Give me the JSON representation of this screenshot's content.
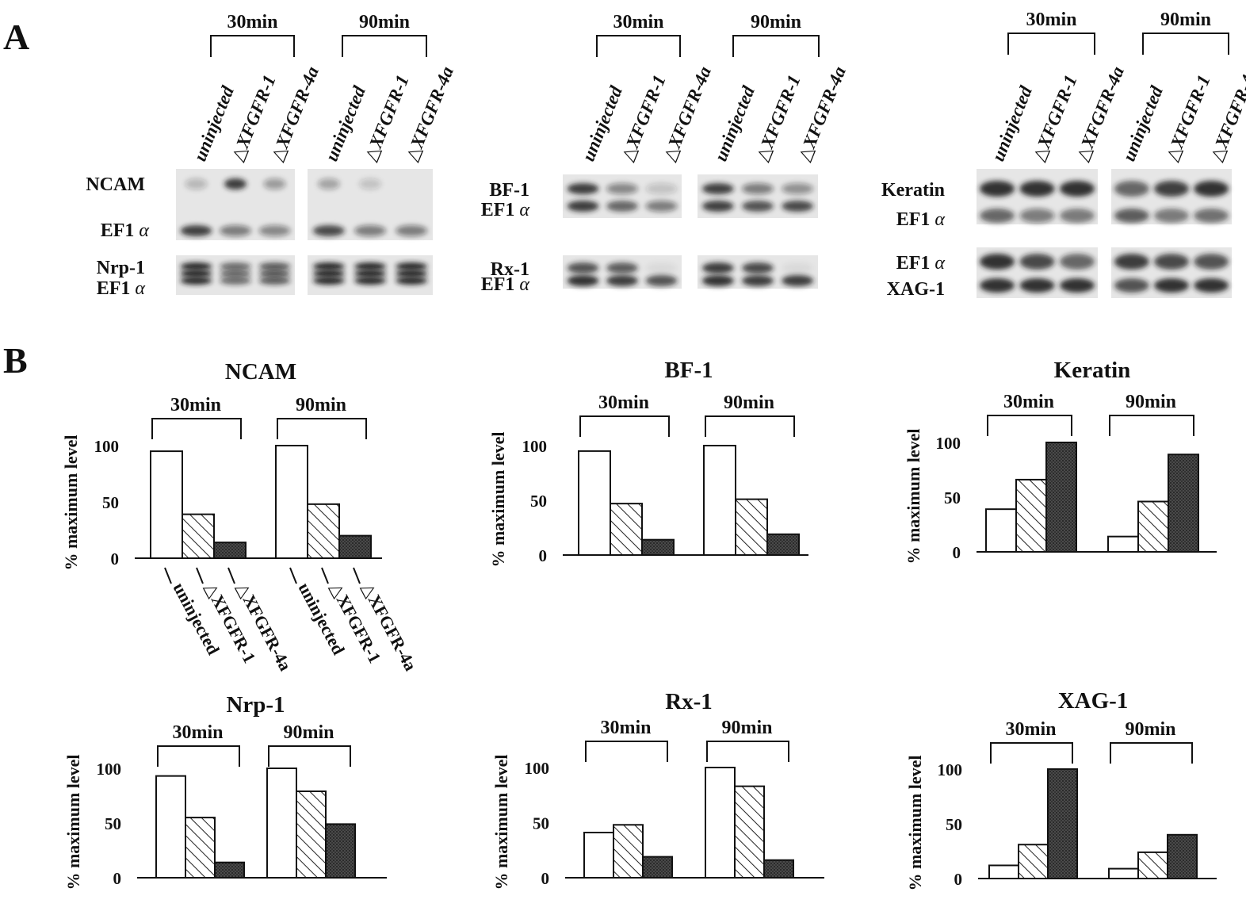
{
  "panel_a": {
    "letter": "A",
    "time_labels": [
      "30min",
      "90min"
    ],
    "lane_labels": [
      "uninjected",
      "△XFGFR-1",
      "△XFGFR-4a"
    ],
    "blots": [
      {
        "top_gene": "NCAM",
        "bottom_gene": "EF1",
        "bottom_greek": "α"
      },
      {
        "top_gene": "Nrp-1",
        "bottom_gene": "EF1",
        "bottom_greek": "α"
      },
      {
        "top_gene": "BF-1",
        "bottom_gene": "EF1",
        "bottom_greek": "α"
      },
      {
        "top_gene": "Rx-1",
        "bottom_gene": "EF1",
        "bottom_greek": "α"
      },
      {
        "top_gene": "Keratin",
        "bottom_gene": "EF1",
        "bottom_greek": "α"
      },
      {
        "top_gene": "EF1",
        "top_greek": "α",
        "bottom_gene": "XAG-1"
      }
    ]
  },
  "panel_b": {
    "letter": "B"
  },
  "chart_data": [
    {
      "type": "bar",
      "title": "NCAM",
      "ylabel": "% maximum level",
      "ylim": [
        0,
        100
      ],
      "yticks": [
        0,
        50,
        100
      ],
      "groups": [
        "30min",
        "90min"
      ],
      "categories": [
        "uninjected",
        "△XFGFR-1",
        "△XFGFR-4a"
      ],
      "series": [
        {
          "name": "30min",
          "values": [
            95,
            39,
            14
          ]
        },
        {
          "name": "90min",
          "values": [
            100,
            48,
            20
          ]
        }
      ],
      "xlabels": [
        "uninjected",
        "△XFGFR-1",
        "△XFGFR-4a"
      ]
    },
    {
      "type": "bar",
      "title": "BF-1",
      "ylabel": "% maximum level",
      "ylim": [
        0,
        100
      ],
      "yticks": [
        0,
        50,
        100
      ],
      "groups": [
        "30min",
        "90min"
      ],
      "categories": [
        "uninjected",
        "△XFGFR-1",
        "△XFGFR-4a"
      ],
      "series": [
        {
          "name": "30min",
          "values": [
            95,
            47,
            14
          ]
        },
        {
          "name": "90min",
          "values": [
            100,
            51,
            19
          ]
        }
      ]
    },
    {
      "type": "bar",
      "title": "Keratin",
      "ylabel": "% maximum level",
      "ylim": [
        0,
        100
      ],
      "yticks": [
        0,
        50,
        100
      ],
      "groups": [
        "30min",
        "90min"
      ],
      "categories": [
        "uninjected",
        "△XFGFR-1",
        "△XFGFR-4a"
      ],
      "series": [
        {
          "name": "30min",
          "values": [
            39,
            66,
            100
          ]
        },
        {
          "name": "90min",
          "values": [
            14,
            46,
            89
          ]
        }
      ]
    },
    {
      "type": "bar",
      "title": "Nrp-1",
      "ylabel": "% maximum level",
      "ylim": [
        0,
        100
      ],
      "yticks": [
        0,
        50,
        100
      ],
      "groups": [
        "30min",
        "90min"
      ],
      "categories": [
        "uninjected",
        "△XFGFR-1",
        "△XFGFR-4a"
      ],
      "series": [
        {
          "name": "30min",
          "values": [
            93,
            55,
            14
          ]
        },
        {
          "name": "90min",
          "values": [
            100,
            79,
            49
          ]
        }
      ]
    },
    {
      "type": "bar",
      "title": "Rx-1",
      "ylabel": "% maximum level",
      "ylim": [
        0,
        100
      ],
      "yticks": [
        0,
        50,
        100
      ],
      "groups": [
        "30min",
        "90min"
      ],
      "categories": [
        "uninjected",
        "△XFGFR-1",
        "△XFGFR-4a"
      ],
      "series": [
        {
          "name": "30min",
          "values": [
            41,
            48,
            19
          ]
        },
        {
          "name": "90min",
          "values": [
            100,
            83,
            16
          ]
        }
      ]
    },
    {
      "type": "bar",
      "title": "XAG-1",
      "ylabel": "% maximum level",
      "ylim": [
        0,
        100
      ],
      "yticks": [
        0,
        50,
        100
      ],
      "groups": [
        "30min",
        "90min"
      ],
      "categories": [
        "uninjected",
        "△XFGFR-1",
        "△XFGFR-4a"
      ],
      "series": [
        {
          "name": "30min",
          "values": [
            12,
            31,
            100
          ]
        },
        {
          "name": "90min",
          "values": [
            9,
            24,
            40
          ]
        }
      ]
    }
  ],
  "colors": {
    "ink": "#111111",
    "hatch": "#222222",
    "dark_fill": "#3a3a3a",
    "blot_bg": "#e8e8e8",
    "band": "#1c1c1c"
  }
}
